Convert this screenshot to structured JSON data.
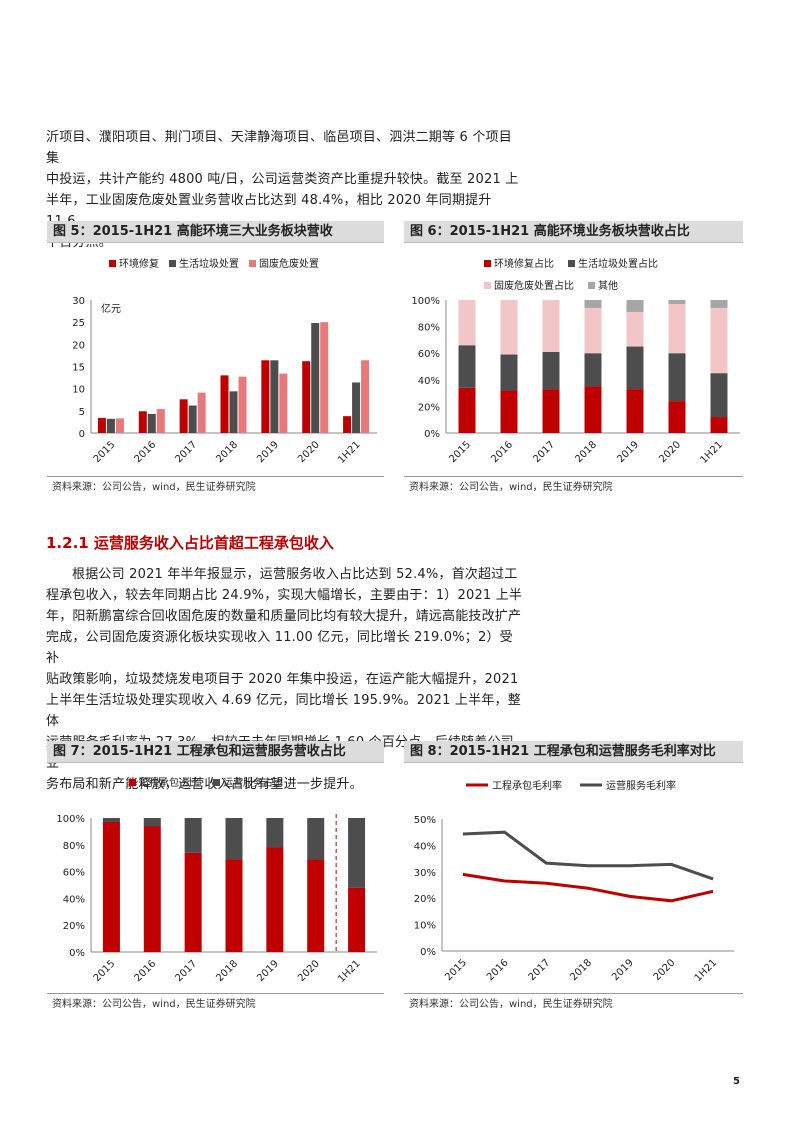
{
  "intro_paragraph": {
    "lines": [
      "沂项目、濮阳项目、荆门项目、天津静海项目、临邑项目、泗洪二期等 6 个项目集",
      "中投运，共计产能约 4800 吨/日，公司运营类资产比重提升较快。截至 2021 上",
      "半年，工业固废危废处置业务营收占比达到 48.4%，相比 2020 年同期提升 11.6",
      "个百分点。"
    ]
  },
  "section": {
    "title": "1.2.1 运营服务收入占比首超工程承包收入"
  },
  "body_paragraph": {
    "lines": [
      "根据公司 2021 年半年报显示，运营服务收入占比达到 52.4%，首次超过工",
      "程承包收入，较去年同期占比 24.9%，实现大幅增长，主要由于：1）2021 上半",
      "年，阳新鹏富综合回收固危废的数量和质量同比均有较大提升，靖远高能技改扩产",
      "完成，公司固危废资源化板块实现收入 11.00 亿元，同比增长 219.0%；2）受补",
      "贴政策影响，垃圾焚烧发电项目于 2020 年集中投运，在运产能大幅提升，2021",
      "上半年生活垃圾处理实现收入 4.69 亿元，同比增长 195.9%。2021 上半年，整体",
      "运营服务毛利率为 27.3%，相较于去年同期增长 1.60 个百分点。后续随着公司业",
      "务布局和新产能释放，运营收入占比有望进一步提升。"
    ]
  },
  "figures": {
    "fig5": {
      "title": "图 5：2015-1H21 高能环境三大业务板块营收",
      "source": "资料来源：公司公告，wind，民生证券研究院"
    },
    "fig6": {
      "title": "图 6：2015-1H21 高能环境业务板块营收占比",
      "source": "资料来源：公司公告，wind，民生证券研究院"
    },
    "fig7": {
      "title": "图 7：2015-1H21 工程承包和运营服务营收占比",
      "source": "资料来源：公司公告，wind，民生证券研究院"
    },
    "fig8": {
      "title": "图 8：2015-1H21 工程承包和运营服务毛利率对比",
      "source": "资料来源：公司公告，wind，民生证券研究院"
    }
  },
  "colors": {
    "red": "#c00000",
    "dark": "#4d4d4d",
    "pink": "#e9787b",
    "lightpink": "#f2c6c6",
    "gray": "#a6a6a6",
    "accent": "#c00000"
  },
  "page_number": "5",
  "chart_data": [
    {
      "type": "bar",
      "categories": [
        "2015",
        "2016",
        "2017",
        "2018",
        "2019",
        "2020",
        "1H21"
      ],
      "ylabel": "亿元",
      "ylim": [
        0,
        30
      ],
      "yticks": [
        0,
        5,
        10,
        15,
        20,
        25,
        30
      ],
      "legend": "top",
      "series": [
        {
          "name": "环境修复",
          "color": "#c00000",
          "values": [
            3.4,
            4.9,
            7.6,
            13.0,
            16.4,
            16.2,
            3.8
          ]
        },
        {
          "name": "生活垃圾处置",
          "color": "#4d4d4d",
          "values": [
            3.2,
            4.3,
            6.2,
            9.4,
            16.4,
            24.8,
            11.4
          ]
        },
        {
          "name": "固废危废处置",
          "color": "#e9787b",
          "values": [
            3.3,
            5.4,
            9.1,
            12.7,
            13.4,
            25.0,
            16.4
          ]
        }
      ]
    },
    {
      "type": "bar",
      "stacked": true,
      "categories": [
        "2015",
        "2016",
        "2017",
        "2018",
        "2019",
        "2020",
        "1H21"
      ],
      "ylim": [
        0,
        100
      ],
      "yticks": [
        "0%",
        "20%",
        "40%",
        "60%",
        "80%",
        "100%"
      ],
      "legend": "top",
      "series": [
        {
          "name": "环境修复占比",
          "color": "#c00000",
          "values": [
            34,
            32,
            33,
            35,
            33,
            24,
            12
          ]
        },
        {
          "name": "生活垃圾处置占比",
          "color": "#4d4d4d",
          "values": [
            32,
            27,
            28,
            25,
            32,
            36,
            33
          ]
        },
        {
          "name": "固废危废处置占比",
          "color": "#f2c6c6",
          "values": [
            34,
            41,
            39,
            34,
            26,
            37,
            49
          ]
        },
        {
          "name": "其他",
          "color": "#a6a6a6",
          "values": [
            0,
            0,
            0,
            6,
            9,
            3,
            6
          ]
        }
      ]
    },
    {
      "type": "bar",
      "stacked": true,
      "categories": [
        "2015",
        "2016",
        "2017",
        "2018",
        "2019",
        "2020",
        "1H21"
      ],
      "ylim": [
        0,
        100
      ],
      "yticks": [
        "0%",
        "20%",
        "40%",
        "60%",
        "80%",
        "100%"
      ],
      "legend": "top",
      "series": [
        {
          "name": "工程承包占比",
          "color": "#c00000",
          "values": [
            97,
            94,
            74,
            69,
            78,
            69,
            48
          ]
        },
        {
          "name": "运营服务占比",
          "color": "#4d4d4d",
          "values": [
            3,
            6,
            26,
            31,
            22,
            31,
            52
          ]
        }
      ]
    },
    {
      "type": "line",
      "categories": [
        "2015",
        "2016",
        "2017",
        "2018",
        "2019",
        "2020",
        "1H21"
      ],
      "ylim": [
        0,
        50
      ],
      "yticks": [
        "0%",
        "10%",
        "20%",
        "30%",
        "40%",
        "50%"
      ],
      "legend": "top",
      "series": [
        {
          "name": "工程承包毛利率",
          "color": "#c00000",
          "values": [
            29.0,
            26.5,
            25.7,
            23.8,
            20.7,
            19.0,
            22.6
          ]
        },
        {
          "name": "运营服务毛利率",
          "color": "#4d4d4d",
          "values": [
            44.3,
            45.0,
            33.3,
            32.3,
            32.3,
            32.8,
            27.3
          ]
        }
      ]
    }
  ]
}
